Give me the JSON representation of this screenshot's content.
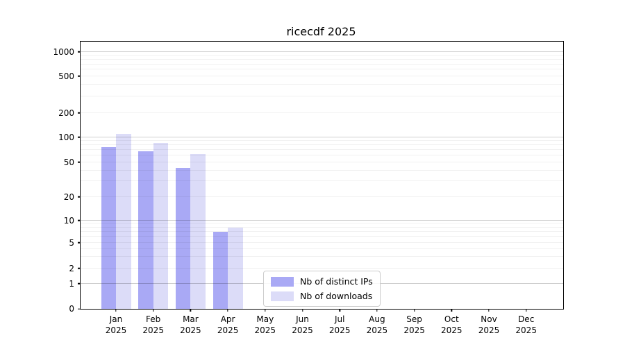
{
  "chart_data": {
    "type": "bar",
    "title": "ricecdf 2025",
    "categories": [
      "Jan",
      "Feb",
      "Mar",
      "Apr",
      "May",
      "Jun",
      "Jul",
      "Aug",
      "Sep",
      "Oct",
      "Nov",
      "Dec"
    ],
    "category_year": "2025",
    "series": [
      {
        "name": "Nb of distinct IPs",
        "color": "#a9a9f5",
        "values": [
          75,
          68,
          43,
          7,
          0,
          0,
          0,
          0,
          0,
          0,
          0,
          0
        ]
      },
      {
        "name": "Nb of downloads",
        "color": "#dcdcf8",
        "values": [
          110,
          85,
          63,
          8,
          0,
          0,
          0,
          0,
          0,
          0,
          0,
          0
        ]
      }
    ],
    "y_ticks": [
      0,
      1,
      2,
      5,
      10,
      20,
      50,
      100,
      200,
      500,
      1000
    ],
    "y_major_gridlines": [
      1,
      10,
      100,
      1000
    ],
    "y_scale": "symlog",
    "ylim": [
      0,
      1300
    ],
    "grid": true,
    "legend_position": "inside-bottom-center",
    "background": "#ffffff"
  },
  "legend": {
    "items": [
      {
        "label": "Nb of distinct IPs"
      },
      {
        "label": "Nb of downloads"
      }
    ]
  }
}
